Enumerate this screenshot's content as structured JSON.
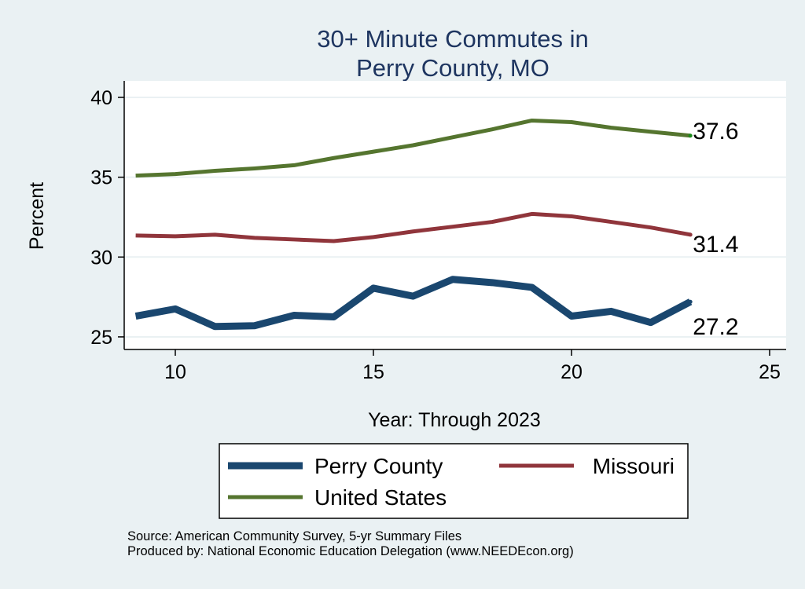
{
  "chart_data": {
    "type": "line",
    "title": [
      "30+ Minute Commutes in",
      "Perry County, MO"
    ],
    "xlabel": "Year: Through 2023",
    "ylabel": "Percent",
    "xlim": [
      8.7,
      25.4
    ],
    "ylim": [
      24.2,
      41
    ],
    "xticks": [
      10,
      15,
      20,
      25
    ],
    "yticks": [
      25,
      30,
      35,
      40
    ],
    "grid": true,
    "legend_position": "bottom",
    "x": [
      9,
      10,
      11,
      12,
      13,
      14,
      15,
      16,
      17,
      18,
      19,
      20,
      21,
      22,
      23
    ],
    "series": [
      {
        "name": "Perry County",
        "color": "#1a476f",
        "width": 9,
        "end_label": "27.2",
        "values": [
          26.3,
          26.75,
          25.65,
          25.7,
          26.35,
          26.25,
          28.05,
          27.55,
          28.6,
          28.4,
          28.1,
          26.3,
          26.6,
          25.9,
          27.2
        ]
      },
      {
        "name": "Missouri",
        "color": "#90353b",
        "width": 5,
        "end_label": "31.4",
        "values": [
          31.35,
          31.3,
          31.4,
          31.2,
          31.1,
          31.0,
          31.25,
          31.6,
          31.9,
          32.2,
          32.7,
          32.55,
          32.2,
          31.85,
          31.4
        ]
      },
      {
        "name": "United States",
        "color": "#55752f",
        "width": 5,
        "end_label": "37.6",
        "values": [
          35.1,
          35.2,
          35.4,
          35.55,
          35.75,
          36.2,
          36.6,
          37.0,
          37.5,
          38.0,
          38.55,
          38.45,
          38.1,
          37.85,
          37.6
        ]
      }
    ],
    "notes": [
      "Source: American Community Survey, 5-yr Summary Files",
      "Produced by: National Economic Education Delegation (www.NEEDEcon.org)"
    ]
  }
}
